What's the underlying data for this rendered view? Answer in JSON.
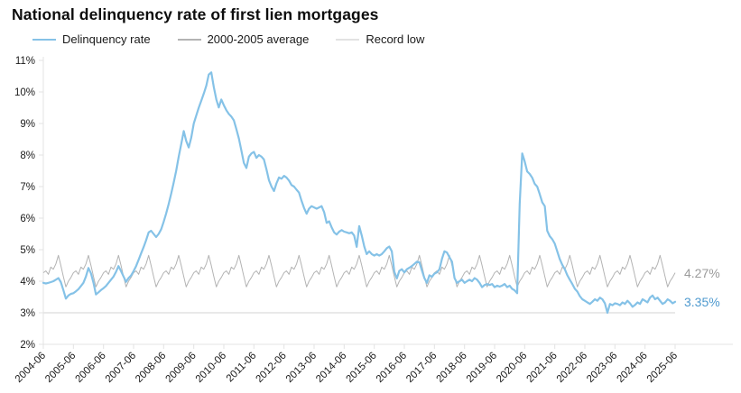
{
  "title": "National delinquency rate of first lien mortgages",
  "legend": [
    {
      "label": "Delinquency rate",
      "color": "#85c2e7"
    },
    {
      "label": "2000-2005 average",
      "color": "#b3b3b3"
    },
    {
      "label": "Record low",
      "color": "#e2e2e2"
    }
  ],
  "annotations": {
    "avg_end_label": "4.27%",
    "current_end_label": "3.35%"
  },
  "colors": {
    "line_blue": "#85c2e7",
    "avg_gray": "#b3b3b3",
    "record_low_gray": "#e2e2e2",
    "axis_gray": "#e3e3e3",
    "tick_text": "#1a1a1a",
    "avg_label_gray": "#9b9b9b",
    "current_label_blue": "#4f9acf"
  },
  "chart_data": {
    "type": "line",
    "title": "National delinquency rate of first lien mortgages",
    "xlabel": "",
    "ylabel": "",
    "ylim": [
      2,
      11
    ],
    "n_points": 253,
    "x_start": "2004-06",
    "x_end": "2025-06",
    "x_frequency": "monthly",
    "x_tick_labels": [
      "2004-06",
      "2005-06",
      "2006-06",
      "2007-06",
      "2008-06",
      "2009-06",
      "2010-06",
      "2011-06",
      "2012-06",
      "2013-06",
      "2014-06",
      "2015-06",
      "2016-06",
      "2017-06",
      "2018-06",
      "2019-06",
      "2020-06",
      "2021-06",
      "2022-06",
      "2023-06",
      "2024-06",
      "2025-06"
    ],
    "y_tick_values": [
      2,
      3,
      4,
      5,
      6,
      7,
      8,
      9,
      10,
      11
    ],
    "y_tick_labels": [
      "2%",
      "3%",
      "4%",
      "5%",
      "6%",
      "7%",
      "8%",
      "9%",
      "10%",
      "11%"
    ],
    "grid": false,
    "legend_position": "top",
    "series": [
      {
        "name": "Delinquency rate",
        "color": "#85c2e7",
        "values": [
          3.95,
          3.93,
          3.95,
          3.97,
          4.0,
          4.05,
          4.1,
          3.97,
          3.72,
          3.45,
          3.55,
          3.6,
          3.62,
          3.68,
          3.75,
          3.85,
          3.95,
          4.15,
          4.42,
          4.25,
          3.95,
          3.58,
          3.65,
          3.72,
          3.78,
          3.85,
          3.95,
          4.05,
          4.15,
          4.3,
          4.48,
          4.32,
          4.15,
          3.98,
          4.1,
          4.18,
          4.32,
          4.48,
          4.68,
          4.88,
          5.08,
          5.3,
          5.55,
          5.6,
          5.5,
          5.4,
          5.5,
          5.65,
          5.88,
          6.15,
          6.45,
          6.78,
          7.12,
          7.5,
          7.95,
          8.35,
          8.76,
          8.45,
          8.24,
          8.55,
          9.0,
          9.25,
          9.5,
          9.72,
          9.95,
          10.2,
          10.55,
          10.62,
          10.15,
          9.76,
          9.51,
          9.76,
          9.58,
          9.42,
          9.3,
          9.22,
          9.1,
          8.82,
          8.52,
          8.15,
          7.75,
          7.59,
          7.95,
          8.05,
          8.1,
          7.91,
          8.0,
          7.95,
          7.86,
          7.55,
          7.2,
          7.0,
          6.86,
          7.1,
          7.29,
          7.25,
          7.34,
          7.29,
          7.19,
          7.05,
          7.0,
          6.9,
          6.81,
          6.55,
          6.32,
          6.14,
          6.3,
          6.38,
          6.34,
          6.3,
          6.34,
          6.38,
          6.19,
          5.85,
          5.9,
          5.71,
          5.55,
          5.48,
          5.57,
          5.62,
          5.57,
          5.55,
          5.52,
          5.55,
          5.45,
          5.09,
          5.75,
          5.45,
          5.1,
          4.86,
          4.95,
          4.86,
          4.81,
          4.86,
          4.81,
          4.86,
          4.95,
          5.05,
          5.1,
          4.95,
          4.3,
          4.09,
          4.33,
          4.38,
          4.28,
          4.38,
          4.43,
          4.48,
          4.55,
          4.62,
          4.6,
          4.35,
          4.1,
          3.95,
          4.19,
          4.14,
          4.24,
          4.28,
          4.38,
          4.71,
          4.95,
          4.91,
          4.76,
          4.62,
          4.1,
          3.95,
          4.0,
          4.05,
          3.95,
          4.0,
          4.05,
          4.0,
          4.1,
          4.05,
          3.95,
          3.81,
          3.88,
          3.91,
          3.88,
          3.91,
          3.81,
          3.86,
          3.83,
          3.86,
          3.91,
          3.81,
          3.86,
          3.76,
          3.71,
          3.62,
          6.45,
          8.05,
          7.8,
          7.48,
          7.4,
          7.28,
          7.09,
          7.0,
          6.76,
          6.5,
          6.38,
          5.6,
          5.43,
          5.33,
          5.19,
          4.95,
          4.7,
          4.52,
          4.38,
          4.19,
          4.05,
          3.91,
          3.76,
          3.67,
          3.53,
          3.43,
          3.38,
          3.33,
          3.28,
          3.35,
          3.43,
          3.38,
          3.48,
          3.43,
          3.3,
          3.0,
          3.28,
          3.24,
          3.3,
          3.28,
          3.24,
          3.33,
          3.28,
          3.38,
          3.3,
          3.19,
          3.25,
          3.33,
          3.28,
          3.43,
          3.38,
          3.33,
          3.48,
          3.55,
          3.43,
          3.48,
          3.38,
          3.28,
          3.33,
          3.43,
          3.38,
          3.3,
          3.35
        ],
        "end_value": 3.35
      },
      {
        "name": "2000-2005 average",
        "color": "#b3b3b3",
        "pattern_note": "seasonal monthly averages repeated every year, Jan-Dec",
        "seasonal_pattern": [
          4.5,
          4.15,
          3.82,
          4.0,
          4.12,
          4.27,
          4.33,
          4.22,
          4.45,
          4.38,
          4.55,
          4.82
        ],
        "end_value": 4.27
      },
      {
        "name": "Record low",
        "color": "#e2e2e2",
        "value": 3.0
      }
    ]
  }
}
